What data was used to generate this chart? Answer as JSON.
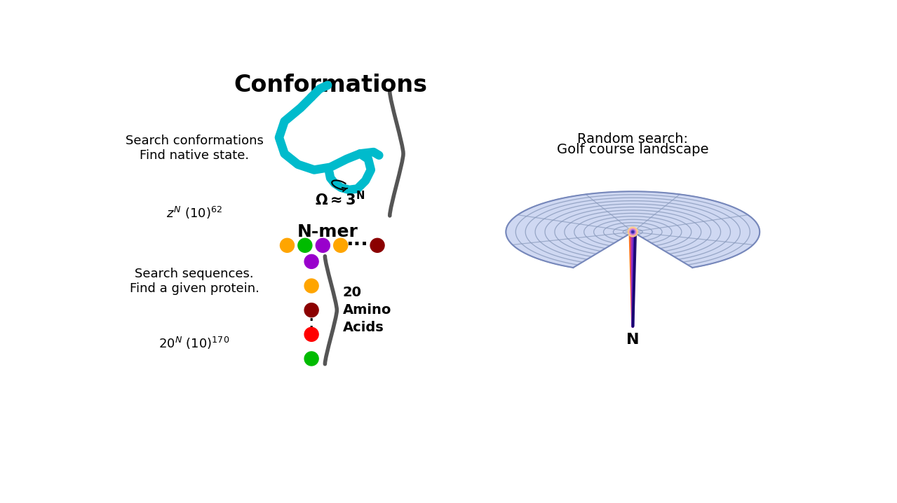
{
  "bg_color": "#ffffff",
  "title_conformations": "Conformations",
  "label_search_conf": "Search conformations\nFind native state.",
  "label_zN": "z$^N$ (10)$^{62}$",
  "label_omega": "$\\mathbf{\\Omega \\approx 3^N}$",
  "label_nmer": "N-mer",
  "label_search_seq": "Search sequences.\nFind a given protein.",
  "label_20N": "20$^N$ (10)$^{170}$",
  "label_random_line1": "Random search:",
  "label_random_line2": "Golf course landscape",
  "label_N": "N",
  "nmer_colors": [
    "#FFA500",
    "#00BB00",
    "#9900CC",
    "#FFA500",
    "#8B0000"
  ],
  "aa_colors": [
    "#9900CC",
    "#FFA500",
    "#8B0000",
    "#FF0000",
    "#00BB00"
  ],
  "teal_color": "#00BBCC",
  "golf_blue": "#c0ccee",
  "golf_ring_color": "#8899bb",
  "spike_colors": [
    "#FF6600",
    "#CC3399",
    "#9933BB",
    "#5522CC",
    "#110066"
  ]
}
